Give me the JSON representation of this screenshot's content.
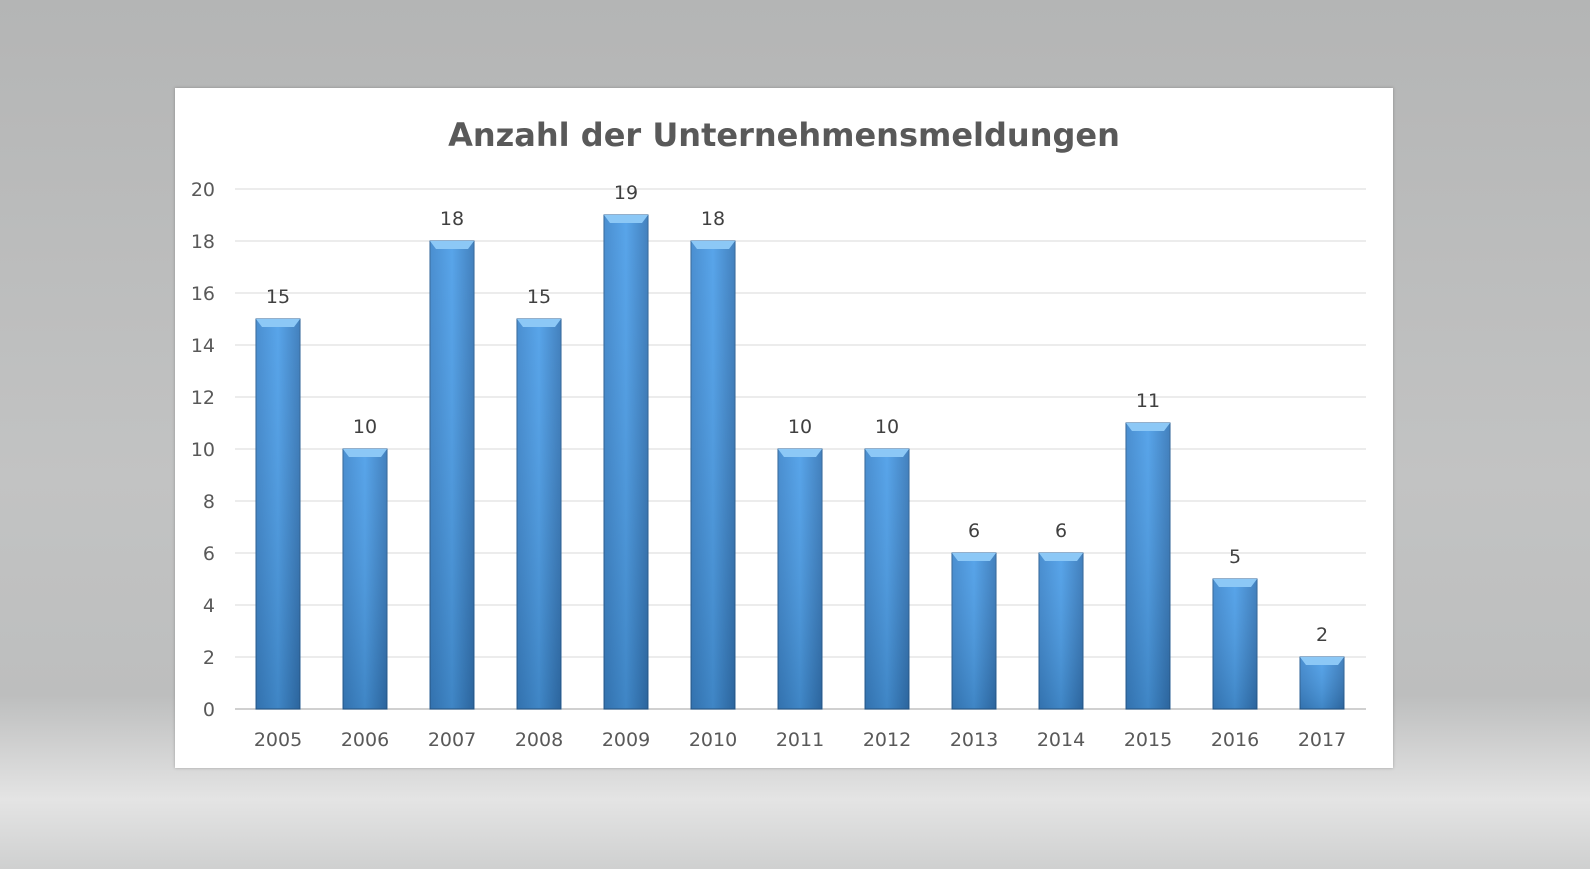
{
  "chart_data": {
    "type": "bar",
    "title": "Anzahl der Unternehmensmeldungen",
    "xlabel": "",
    "ylabel": "",
    "categories": [
      "2005",
      "2006",
      "2007",
      "2008",
      "2009",
      "2010",
      "2011",
      "2012",
      "2013",
      "2014",
      "2015",
      "2016",
      "2017"
    ],
    "values": [
      15,
      10,
      18,
      15,
      19,
      18,
      10,
      10,
      6,
      6,
      11,
      5,
      2
    ],
    "ylim": [
      0,
      20
    ],
    "yticks": [
      0,
      2,
      4,
      6,
      8,
      10,
      12,
      14,
      16,
      18,
      20
    ],
    "grid": true,
    "data_labels": true,
    "legend": "none",
    "colors": {
      "bar": "#3d8fd9",
      "bar_light": "#5aaaf0",
      "bar_dark": "#2f6ea8",
      "grid": "#d9d9d9"
    }
  }
}
